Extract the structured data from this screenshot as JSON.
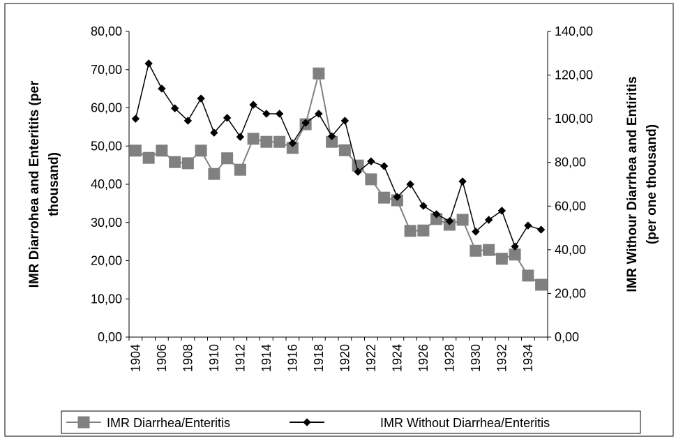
{
  "chart_data": {
    "type": "line",
    "ylabel": [
      "IMR Diarrohea and Enteritits (per",
      "thousand)"
    ],
    "y2label": [
      "IMR Withour Diarrhea and Entiritis",
      "(per one thousand)"
    ],
    "categories": [
      "1904",
      null,
      "1906",
      null,
      "1908",
      null,
      "1910",
      null,
      "1912",
      null,
      "1914",
      null,
      "1916",
      null,
      "1918",
      null,
      "1920",
      null,
      "1922",
      null,
      "1924",
      null,
      "1926",
      null,
      "1928",
      null,
      "1930",
      null,
      "1932",
      null,
      "1934",
      null
    ],
    "ylim": [
      0,
      80
    ],
    "yticks": [
      {
        "value": 0,
        "label": "0,00"
      },
      {
        "value": 10,
        "label": "10,00"
      },
      {
        "value": 20,
        "label": "20,00"
      },
      {
        "value": 30,
        "label": "30,00"
      },
      {
        "value": 40,
        "label": "40,00"
      },
      {
        "value": 50,
        "label": "50,00"
      },
      {
        "value": 60,
        "label": "60,00"
      },
      {
        "value": 70,
        "label": "70,00"
      },
      {
        "value": 80,
        "label": "80,00"
      }
    ],
    "y2lim": [
      0,
      140
    ],
    "y2ticks": [
      {
        "value": 0,
        "label": "0,00"
      },
      {
        "value": 20,
        "label": "20,00"
      },
      {
        "value": 40,
        "label": "40,00"
      },
      {
        "value": 60,
        "label": "60,00"
      },
      {
        "value": 80,
        "label": "80,00"
      },
      {
        "value": 100,
        "label": "100,00"
      },
      {
        "value": 120,
        "label": "120,00"
      },
      {
        "value": 140,
        "label": "140,00"
      }
    ],
    "series": [
      {
        "name": "IMR Diarrhea/Enteritis",
        "color": "#808080",
        "marker": "square",
        "values": [
          48.8,
          46.9,
          48.8,
          45.8,
          45.5,
          48.8,
          42.7,
          46.8,
          43.8,
          51.9,
          51.1,
          51.1,
          49.5,
          55.7,
          69.0,
          51.1,
          48.9,
          44.9,
          41.3,
          36.5,
          35.8,
          27.8,
          27.9,
          30.9,
          29.4,
          30.7,
          22.6,
          22.8,
          20.5,
          21.6,
          16.1,
          13.7
        ]
      },
      {
        "name": "IMR Without Diarrhea/Enteritis",
        "color": "#000000",
        "marker": "diamond",
        "axis": "y2",
        "values": [
          100,
          125.3,
          113.8,
          104.8,
          99.1,
          109.3,
          93.6,
          100.4,
          91.7,
          106.4,
          102.3,
          102.3,
          88.8,
          98.1,
          102.3,
          92.0,
          99.1,
          75.7,
          80.5,
          78.3,
          64.2,
          70.0,
          60.1,
          56.3,
          53.1,
          71.3,
          48.3,
          53.7,
          57.9,
          41.5,
          51.1,
          49.2
        ]
      }
    ]
  }
}
